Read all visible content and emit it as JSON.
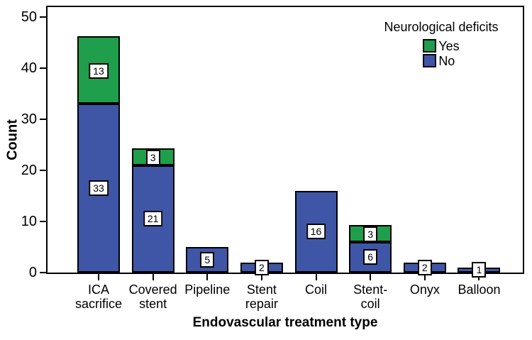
{
  "chart_data": {
    "type": "bar",
    "stacked": true,
    "orientation": "vertical",
    "xlabel": "Endovascular treatment type",
    "ylabel": "Count",
    "categories": [
      "ICA sacrifice",
      "Covered stent",
      "Pipeline",
      "Stent repair",
      "Coil",
      "Stent-coil",
      "Onyx",
      "Balloon"
    ],
    "category_label_lines": [
      [
        "ICA",
        "sacrifice"
      ],
      [
        "Covered",
        "stent"
      ],
      [
        "Pipeline"
      ],
      [
        "Stent",
        "repair"
      ],
      [
        "Coil"
      ],
      [
        "Stent-",
        "coil"
      ],
      [
        "Onyx"
      ],
      [
        "Balloon"
      ]
    ],
    "series": [
      {
        "name": "No",
        "color": "#3F56A7",
        "values": [
          33,
          21,
          5,
          2,
          16,
          6,
          2,
          1
        ]
      },
      {
        "name": "Yes",
        "color": "#1F9E4B",
        "values": [
          13,
          3,
          0,
          0,
          0,
          3,
          0,
          0
        ]
      }
    ],
    "value_labels_shown": true,
    "yticks": [
      "0",
      "10",
      "20",
      "30",
      "40",
      "50"
    ],
    "ytick_values": [
      0,
      10,
      20,
      30,
      40,
      50
    ],
    "ylim": [
      0,
      52
    ],
    "grid": false,
    "bar_outline_color": "#000000",
    "plot_background": "#ffffff",
    "legend": {
      "title": "Neurological deficits",
      "position": "top-right",
      "entries": [
        {
          "label": "Yes",
          "color": "#1F9E4B"
        },
        {
          "label": "No",
          "color": "#3F56A7"
        }
      ]
    }
  }
}
